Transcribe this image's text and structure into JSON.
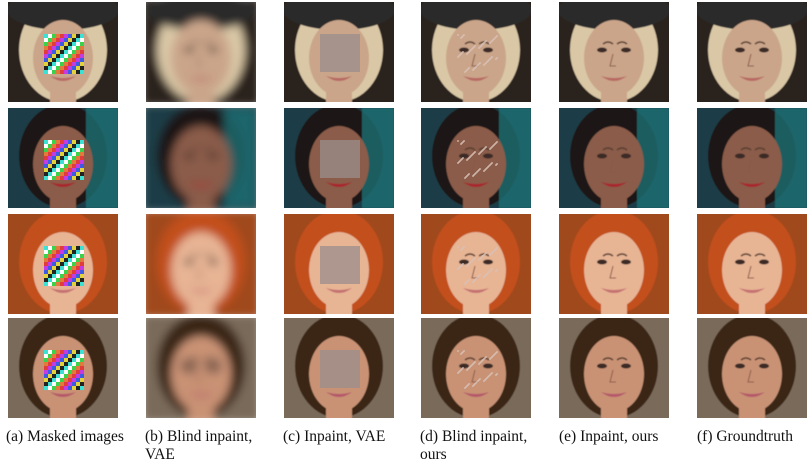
{
  "columns": [
    {
      "caption": "(a) Masked images",
      "kind": "masked"
    },
    {
      "caption": "(b) Blind inpaint, VAE",
      "kind": "blur"
    },
    {
      "caption": "(c) Inpaint, VAE",
      "kind": "patch"
    },
    {
      "caption": "(d) Blind inpaint, ours",
      "kind": "faint"
    },
    {
      "caption": "(e) Inpaint, ours",
      "kind": "clean"
    },
    {
      "caption": "(f) Groundtruth",
      "kind": "clean"
    }
  ],
  "rows": [
    {
      "name": "older-woman-with-hat",
      "bg": "#2a211c",
      "skin": "#caa58a",
      "hair": "#d9c7a6",
      "accent": "#2b2a2a",
      "lip": "#b86b64"
    },
    {
      "name": "woman-dark-hair-teal-background",
      "bg": "#1c3e46",
      "skin": "#8a5c4a",
      "hair": "#1b1717",
      "accent": "#1e6f73",
      "lip": "#a8262e"
    },
    {
      "name": "red-haired-girl",
      "bg": "#a04a1a",
      "skin": "#e7b494",
      "hair": "#c24f1b",
      "accent": "#d96a2a",
      "lip": "#c57171"
    },
    {
      "name": "brunette-woman-smiling",
      "bg": "#7a6a5a",
      "skin": "#c99274",
      "hair": "#3b2518",
      "accent": "#6b5848",
      "lip": "#b5586a"
    }
  ]
}
